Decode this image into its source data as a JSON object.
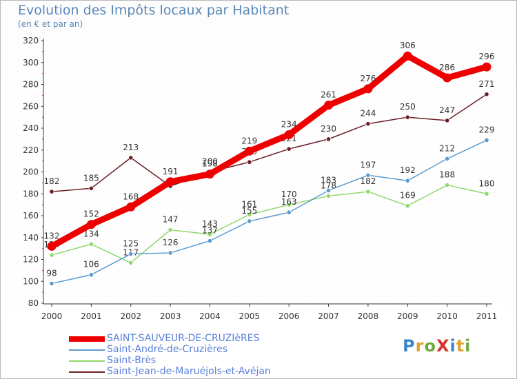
{
  "title": "Evolution des Impôts locaux par Habitant",
  "subtitle": "(en € et par an)",
  "logo": {
    "text": "ProXiti",
    "letters": [
      "P",
      "r",
      "o",
      "X",
      "i",
      "t",
      "i"
    ]
  },
  "chart_data": {
    "type": "line",
    "title": "Evolution des Impôts locaux par Habitant",
    "subtitle": "(en € et par an)",
    "xlabel": "",
    "ylabel": "",
    "x": [
      "2000",
      "2001",
      "2002",
      "2003",
      "2004",
      "2005",
      "2006",
      "2007",
      "2008",
      "2009",
      "2010",
      "2011"
    ],
    "ylim": [
      80,
      320
    ],
    "yticks": [
      80,
      100,
      120,
      140,
      160,
      180,
      200,
      220,
      240,
      260,
      280,
      300,
      320
    ],
    "grid": false,
    "legend_position": "bottom-left",
    "series": [
      {
        "name": "Saint-Jean-de-Maruéjols-et-Avéjan",
        "color": "#6b1d24",
        "values": [
          182,
          185,
          213,
          187,
          200,
          209,
          221,
          230,
          244,
          250,
          247,
          271
        ]
      },
      {
        "name": "Saint-Brès",
        "color": "#8fd86a",
        "values": [
          124,
          134,
          117,
          147,
          143,
          161,
          170,
          178,
          182,
          169,
          188,
          180
        ]
      },
      {
        "name": "Saint-André-de-Cruzières",
        "color": "#5b9bd0",
        "values": [
          98,
          106,
          125,
          126,
          137,
          155,
          163,
          183,
          197,
          192,
          212,
          229
        ]
      },
      {
        "name": "SAINT-SAUVEUR-DE-CRUZIèRES",
        "color": "#ee0000",
        "values": [
          132,
          152,
          168,
          191,
          198,
          219,
          234,
          261,
          276,
          306,
          286,
          296
        ]
      }
    ],
    "labels_shown": {
      "Saint-Jean-de-Maruéjols-et-Avéjan": [
        "182",
        "185",
        "213",
        "",
        "200",
        "209",
        "221",
        "230",
        "244",
        "250",
        "247",
        "271"
      ],
      "Saint-Brès": [
        "124",
        "134",
        "117",
        "147",
        "143",
        "161",
        "170",
        "178",
        "182",
        "169",
        "188",
        "180"
      ],
      "Saint-André-de-Cruzières": [
        "98",
        "106",
        "125",
        "126",
        "137",
        "155",
        "163",
        "183",
        "197",
        "192",
        "212",
        "229"
      ],
      "SAINT-SAUVEUR-DE-CRUZIèRES": [
        "132",
        "152",
        "168",
        "191",
        "198",
        "219",
        "234",
        "261",
        "276",
        "306",
        "286",
        "296"
      ]
    },
    "legend": [
      "SAINT-SAUVEUR-DE-CRUZIèRES",
      "Saint-André-de-Cruzières",
      "Saint-Brès",
      "Saint-Jean-de-Maruéjols-et-Avéjan"
    ]
  }
}
